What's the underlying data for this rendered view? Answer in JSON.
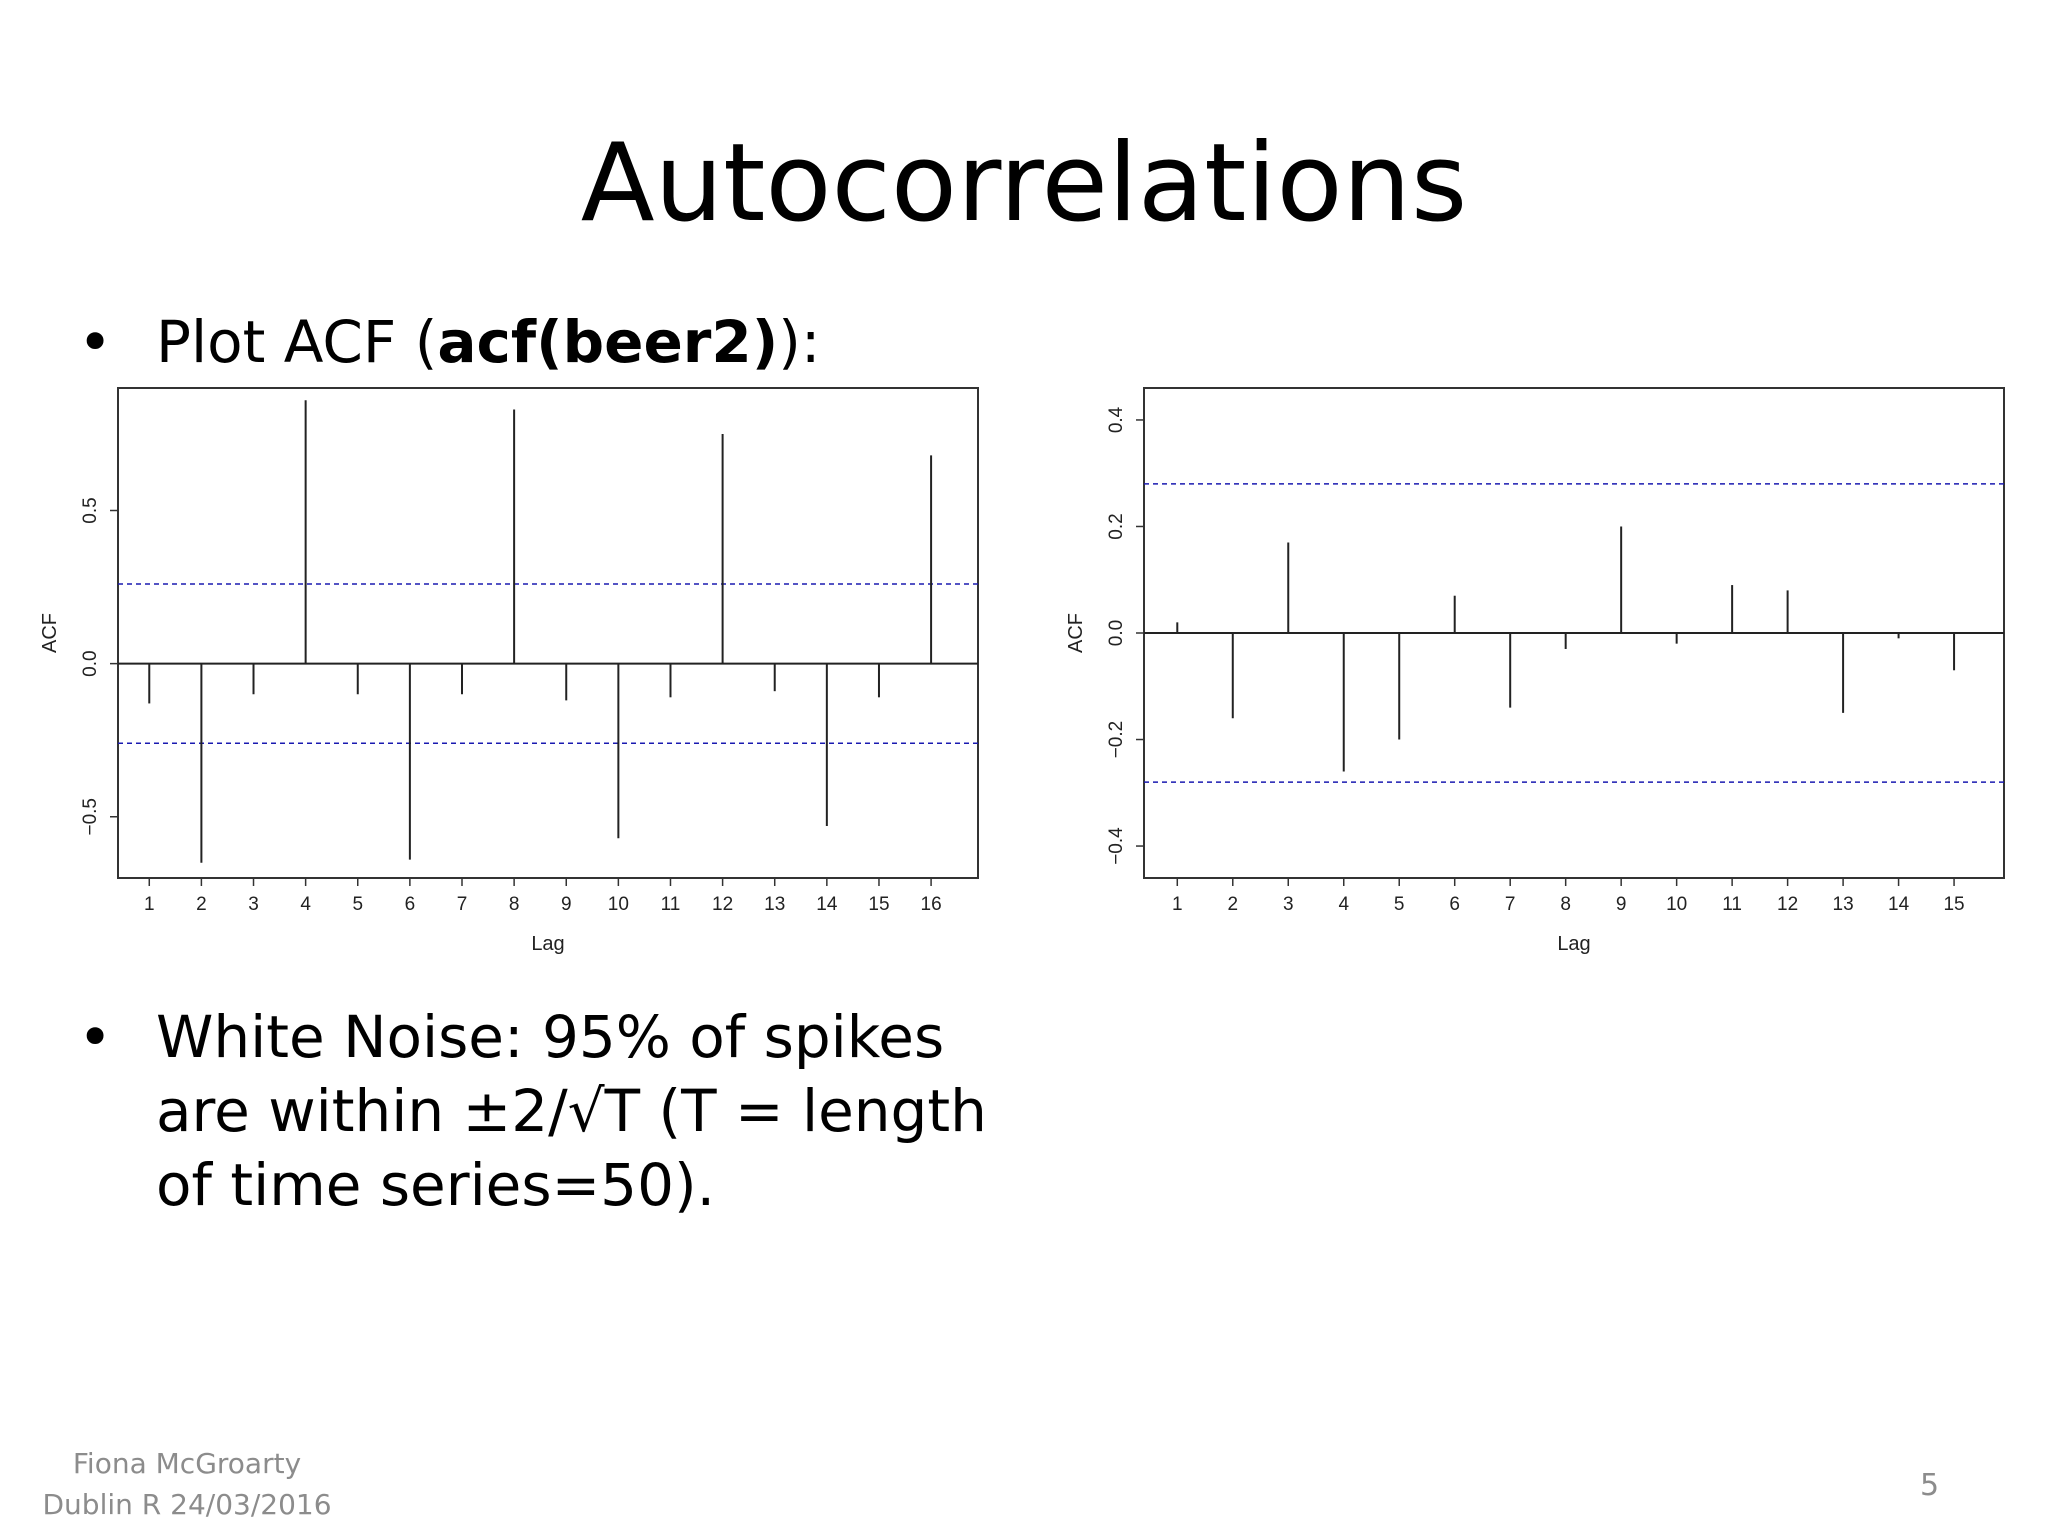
{
  "slide": {
    "title": "Autocorrelations",
    "bullet1": {
      "prefix": "Plot ACF (",
      "bold": "acf(beer2)",
      "suffix": "):"
    },
    "bullet2_lines": [
      "White Noise: 95% of spikes",
      "are within ±2/√T (T = length",
      "of time series=50)."
    ],
    "footer_lines": [
      "Fiona McGroarty",
      "Dublin R 24/03/2016"
    ],
    "page_number": "5",
    "bullet_char": "•"
  },
  "chart_data": [
    {
      "type": "bar",
      "xlabel": "Lag",
      "ylabel": "ACF",
      "lags": [
        1,
        2,
        3,
        4,
        5,
        6,
        7,
        8,
        9,
        10,
        11,
        12,
        13,
        14,
        15,
        16
      ],
      "values": [
        -0.13,
        -0.65,
        -0.1,
        0.86,
        -0.1,
        -0.64,
        -0.1,
        0.83,
        -0.12,
        -0.57,
        -0.11,
        0.75,
        -0.09,
        -0.53,
        -0.11,
        0.68
      ],
      "conf_limit": 0.26,
      "ylim": [
        -0.7,
        0.9
      ],
      "yticks": [
        -0.5,
        0.0,
        0.5
      ],
      "ytick_labels": [
        "−0.5",
        "0.0",
        "0.5"
      ],
      "conf_line_color": "#1a1ab0"
    },
    {
      "type": "bar",
      "xlabel": "Lag",
      "ylabel": "ACF",
      "lags": [
        1,
        2,
        3,
        4,
        5,
        6,
        7,
        8,
        9,
        10,
        11,
        12,
        13,
        14,
        15
      ],
      "values": [
        0.02,
        -0.16,
        0.17,
        -0.26,
        -0.2,
        0.07,
        -0.14,
        -0.03,
        0.2,
        -0.02,
        0.09,
        0.08,
        -0.15,
        -0.01,
        -0.07
      ],
      "conf_limit": 0.28,
      "ylim": [
        -0.46,
        0.46
      ],
      "yticks": [
        -0.4,
        -0.2,
        0.0,
        0.2,
        0.4
      ],
      "ytick_labels": [
        "−0.4",
        "−0.2",
        "0.0",
        "0.2",
        "0.4"
      ],
      "conf_line_color": "#1a1ab0"
    }
  ]
}
